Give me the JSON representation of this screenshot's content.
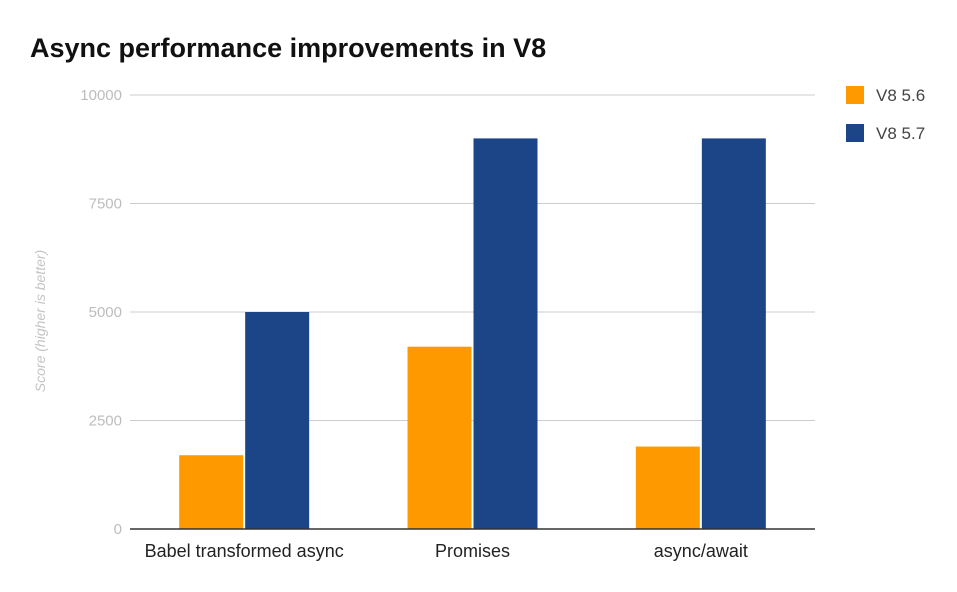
{
  "chart_data": {
    "type": "bar",
    "title": "Async performance improvements in V8",
    "xlabel": "",
    "ylabel": "Score (higher is better)",
    "ylim": [
      0,
      10000
    ],
    "yticks": [
      0,
      2500,
      5000,
      7500,
      10000
    ],
    "yticklabels": [
      "0",
      "2500",
      "5000",
      "7500",
      "10000"
    ],
    "categories": [
      "Babel transformed async",
      "Promises",
      "async/await"
    ],
    "series": [
      {
        "name": "V8 5.6",
        "color": "#ff9900",
        "values": [
          1700,
          4200,
          1900
        ]
      },
      {
        "name": "V8 5.7",
        "color": "#1c4587",
        "values": [
          5000,
          9000,
          9000
        ]
      }
    ],
    "grid": true,
    "legend_position": "right"
  }
}
